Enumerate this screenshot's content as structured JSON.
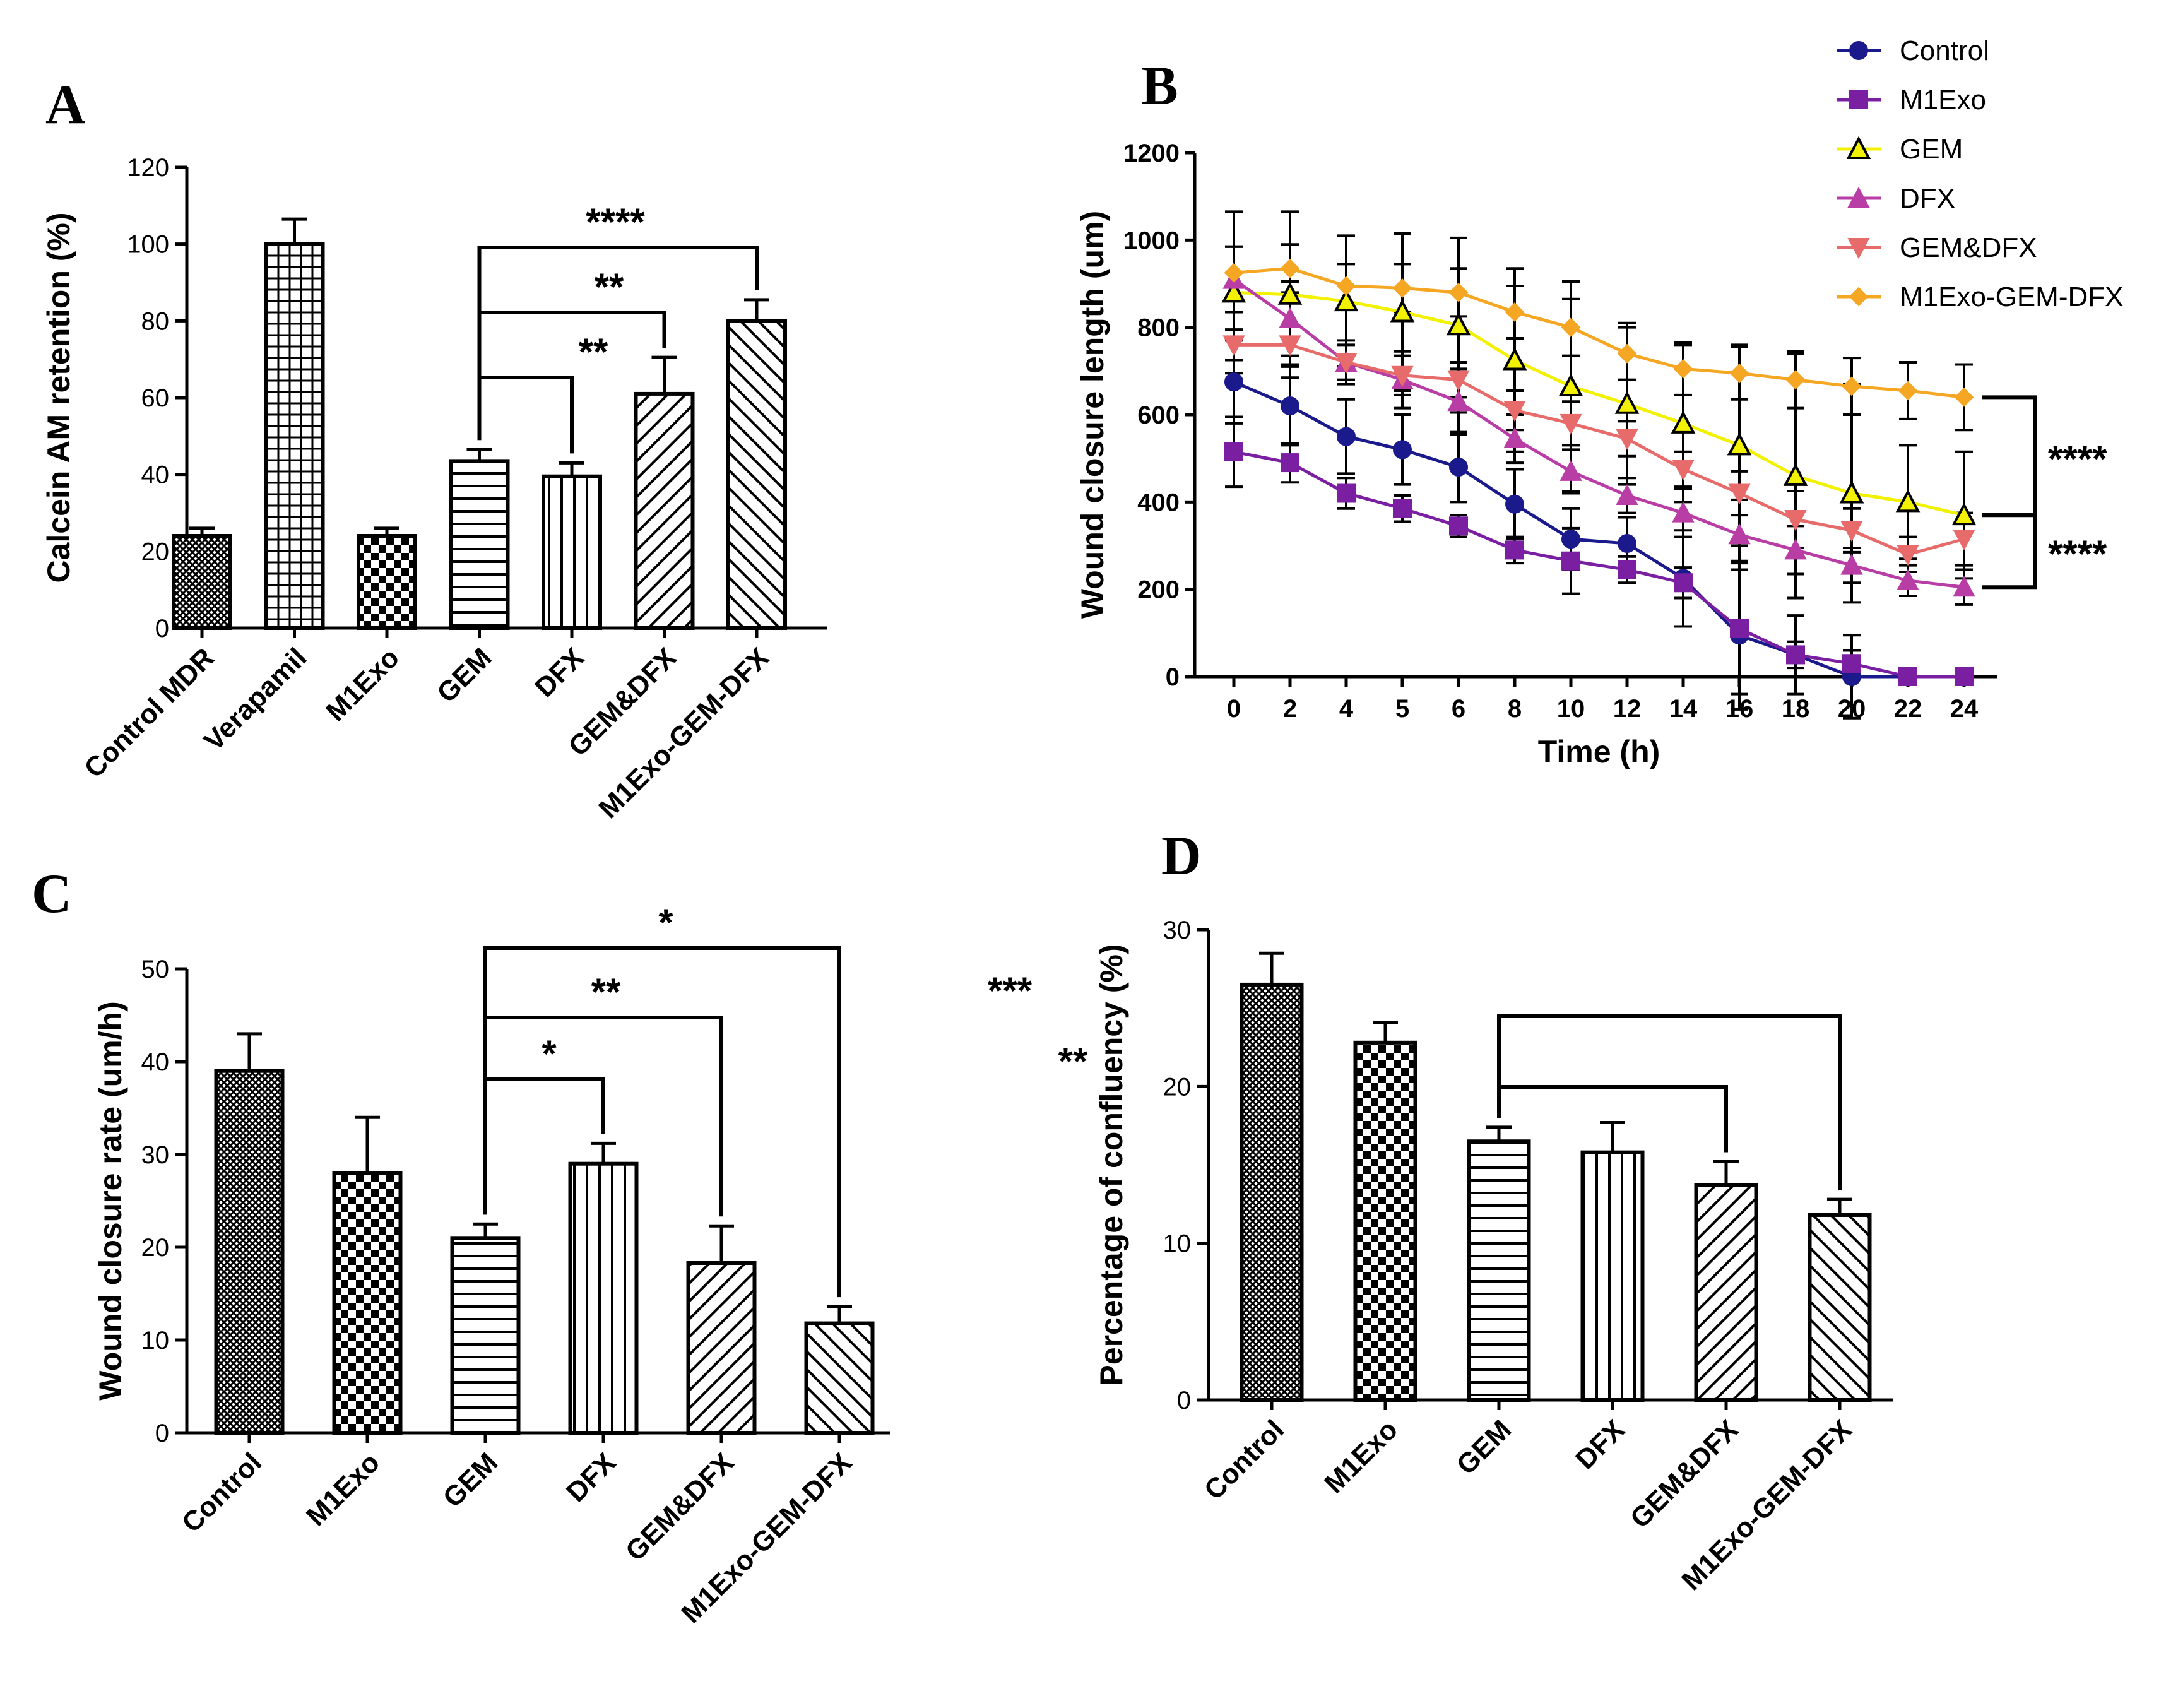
{
  "chart_data": [
    {
      "id": "A",
      "panel_label": "A",
      "type": "bar",
      "ylabel": "Calcein AM retention (%)",
      "xlabel": "",
      "ylim": [
        0,
        120
      ],
      "yticks": [
        0,
        20,
        40,
        60,
        80,
        100,
        120
      ],
      "categories": [
        "Control MDR",
        "Verapamil",
        "M1Exo",
        "GEM",
        "DFX",
        "GEM&DFX",
        "M1Exo-GEM-DFX"
      ],
      "values": [
        24,
        100,
        24,
        43.5,
        39.5,
        61,
        80
      ],
      "errors": [
        2,
        6.5,
        2,
        3,
        3.5,
        9.5,
        5.5
      ],
      "patterns": [
        "crosshatch",
        "grid",
        "checker",
        "hlines",
        "vlines",
        "diag",
        "antidiag"
      ],
      "significance": [
        {
          "from": "GEM",
          "to": "DFX",
          "label": "**"
        },
        {
          "from": "GEM",
          "to": "GEM&DFX",
          "label": "**"
        },
        {
          "from": "GEM",
          "to": "M1Exo-GEM-DFX",
          "label": "****"
        }
      ]
    },
    {
      "id": "B",
      "panel_label": "B",
      "type": "line",
      "ylabel": "Wound closure length (um)",
      "xlabel": "Time (h)",
      "ylim": [
        0,
        1200
      ],
      "yticks": [
        0,
        200,
        400,
        600,
        800,
        1000,
        1200
      ],
      "x": [
        0,
        2,
        4,
        5,
        6,
        8,
        10,
        12,
        14,
        16,
        18,
        20,
        22,
        24
      ],
      "series": [
        {
          "name": "Control",
          "color": "#1a1a8c",
          "marker": "circle",
          "values": [
            675,
            620,
            550,
            520,
            480,
            395,
            315,
            305,
            225,
            95,
            50,
            0,
            0,
            0
          ],
          "errors": [
            95,
            90,
            85,
            80,
            80,
            80,
            70,
            60,
            110,
            170,
            90,
            95,
            0,
            0
          ]
        },
        {
          "name": "M1Exo",
          "color": "#7a1fa2",
          "marker": "square",
          "values": [
            515,
            490,
            420,
            385,
            345,
            290,
            265,
            245,
            215,
            110,
            50,
            30,
            0,
            0
          ],
          "errors": [
            80,
            45,
            35,
            30,
            25,
            30,
            75,
            30,
            35,
            150,
            30,
            30,
            0,
            0
          ]
        },
        {
          "name": "GEM",
          "color": "#f2f200",
          "marker": "triangle",
          "values": [
            880,
            875,
            860,
            835,
            805,
            725,
            665,
            625,
            580,
            530,
            460,
            420,
            400,
            370
          ],
          "errors": [
            185,
            190,
            150,
            180,
            200,
            210,
            240,
            185,
            180,
            230,
            280,
            250,
            130,
            145
          ]
        },
        {
          "name": "DFX",
          "color": "#b83ea6",
          "marker": "triangle",
          "values": [
            910,
            820,
            720,
            680,
            630,
            545,
            470,
            415,
            375,
            325,
            290,
            255,
            220,
            205
          ],
          "errors": [
            75,
            85,
            50,
            65,
            75,
            55,
            50,
            40,
            55,
            80,
            55,
            40,
            35,
            40
          ]
        },
        {
          "name": "GEM&DFX",
          "color": "#e86b6b",
          "marker": "triangle-down",
          "values": [
            760,
            760,
            720,
            690,
            680,
            610,
            580,
            545,
            475,
            420,
            360,
            335,
            280,
            315
          ],
          "errors": [
            35,
            45,
            40,
            45,
            40,
            45,
            50,
            40,
            40,
            50,
            65,
            50,
            40,
            60
          ]
        },
        {
          "name": "M1Exo-GEM-DFX",
          "color": "#f5a623",
          "marker": "diamond",
          "values": [
            925,
            935,
            895,
            890,
            880,
            835,
            800,
            740,
            705,
            695,
            680,
            665,
            655,
            640
          ],
          "errors": [
            60,
            55,
            50,
            55,
            55,
            60,
            65,
            60,
            60,
            60,
            65,
            65,
            65,
            75
          ]
        }
      ],
      "significance": [
        {
          "label": "****",
          "between": [
            "M1Exo-GEM-DFX",
            "GEM"
          ]
        },
        {
          "label": "****",
          "between": [
            "GEM",
            "DFX"
          ]
        }
      ]
    },
    {
      "id": "C",
      "panel_label": "C",
      "type": "bar",
      "ylabel": "Wound closure rate (um/h)",
      "xlabel": "",
      "ylim": [
        0,
        50
      ],
      "yticks": [
        0,
        10,
        20,
        30,
        40,
        50
      ],
      "categories": [
        "Control",
        "M1Exo",
        "GEM",
        "DFX",
        "GEM&DFX",
        "M1Exo-GEM-DFX"
      ],
      "values": [
        39,
        28,
        21,
        29,
        18.3,
        11.8
      ],
      "errors": [
        4,
        6,
        1.5,
        2.2,
        4,
        1.8
      ],
      "patterns": [
        "crosshatch",
        "checker",
        "hlines",
        "vlines",
        "diag",
        "antidiag"
      ],
      "significance": [
        {
          "from": "GEM",
          "to": "DFX",
          "label": "*"
        },
        {
          "from": "GEM",
          "to": "GEM&DFX",
          "label": "**"
        },
        {
          "from": "GEM",
          "to": "M1Exo-GEM-DFX",
          "label": "*"
        }
      ]
    },
    {
      "id": "D",
      "panel_label": "D",
      "type": "bar",
      "ylabel": "Percentage of confluency (%)",
      "xlabel": "",
      "ylim": [
        0,
        30
      ],
      "yticks": [
        0,
        10,
        20,
        30
      ],
      "categories": [
        "Control",
        "M1Exo",
        "GEM",
        "DFX",
        "GEM&DFX",
        "M1Exo-GEM-DFX"
      ],
      "values": [
        26.5,
        22.8,
        16.5,
        15.8,
        13.7,
        11.8
      ],
      "errors": [
        2,
        1.3,
        0.9,
        1.9,
        1.5,
        1
      ],
      "patterns": [
        "crosshatch",
        "checker",
        "hlines",
        "vlines",
        "diag",
        "antidiag"
      ],
      "significance": [
        {
          "from": "GEM",
          "to": "GEM&DFX",
          "label": "**"
        },
        {
          "from": "GEM",
          "to": "M1Exo-GEM-DFX",
          "label": "***"
        }
      ]
    }
  ]
}
